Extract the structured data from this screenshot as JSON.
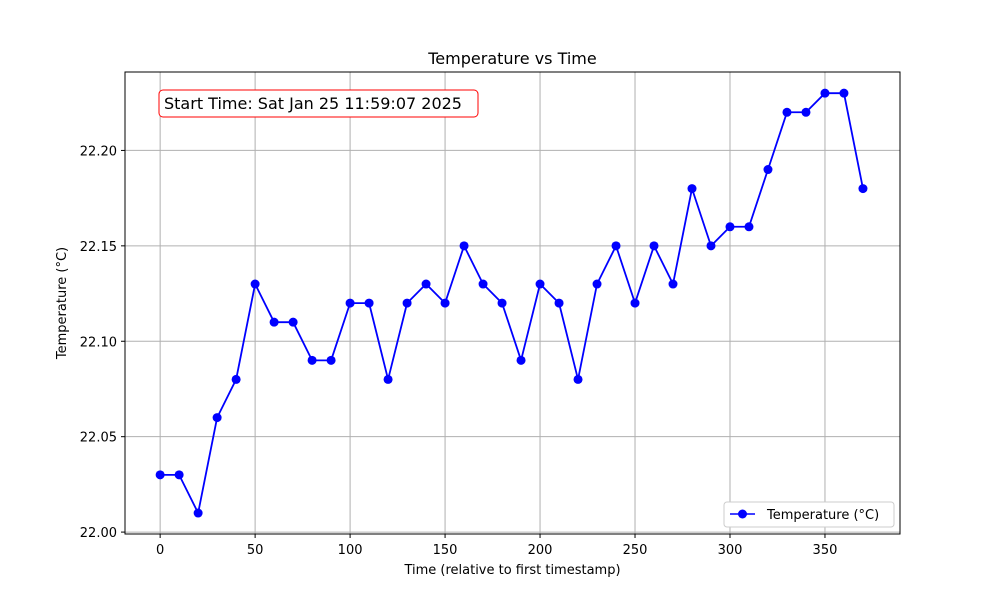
{
  "chart_data": {
    "type": "line",
    "title": "Temperature vs Time",
    "xlabel": "Time (relative to first timestamp)",
    "ylabel": "Temperature (°C)",
    "xlim": [
      -18.5,
      389.5
    ],
    "ylim": [
      21.999,
      22.2411
    ],
    "xticks": [
      0,
      50,
      100,
      150,
      200,
      250,
      300,
      350
    ],
    "yticks": [
      22.0,
      22.05,
      22.1,
      22.15,
      22.2
    ],
    "ytick_labels": [
      "22.00",
      "22.05",
      "22.10",
      "22.15",
      "22.20"
    ],
    "grid": true,
    "legend_position": "lower right",
    "annotation": "Start Time: Sat Jan 25 11:59:07 2025",
    "annotation_color": "#ff0000",
    "series": [
      {
        "name": "Temperature (°C)",
        "color": "#0000ff",
        "marker": "circle",
        "x": [
          0,
          10,
          20,
          30,
          40,
          50,
          60,
          70,
          80,
          90,
          100,
          110,
          120,
          130,
          140,
          150,
          160,
          170,
          180,
          190,
          200,
          210,
          220,
          230,
          240,
          250,
          260,
          270,
          280,
          290,
          300,
          310,
          320,
          330,
          340,
          350,
          360,
          370
        ],
        "y": [
          22.03,
          22.03,
          22.01,
          22.06,
          22.08,
          22.13,
          22.11,
          22.11,
          22.09,
          22.09,
          22.12,
          22.12,
          22.08,
          22.12,
          22.13,
          22.12,
          22.15,
          22.13,
          22.12,
          22.09,
          22.13,
          22.12,
          22.08,
          22.13,
          22.15,
          22.12,
          22.15,
          22.13,
          22.18,
          22.15,
          22.16,
          22.16,
          22.19,
          22.22,
          22.22,
          22.23,
          22.23,
          22.18
        ]
      }
    ]
  }
}
